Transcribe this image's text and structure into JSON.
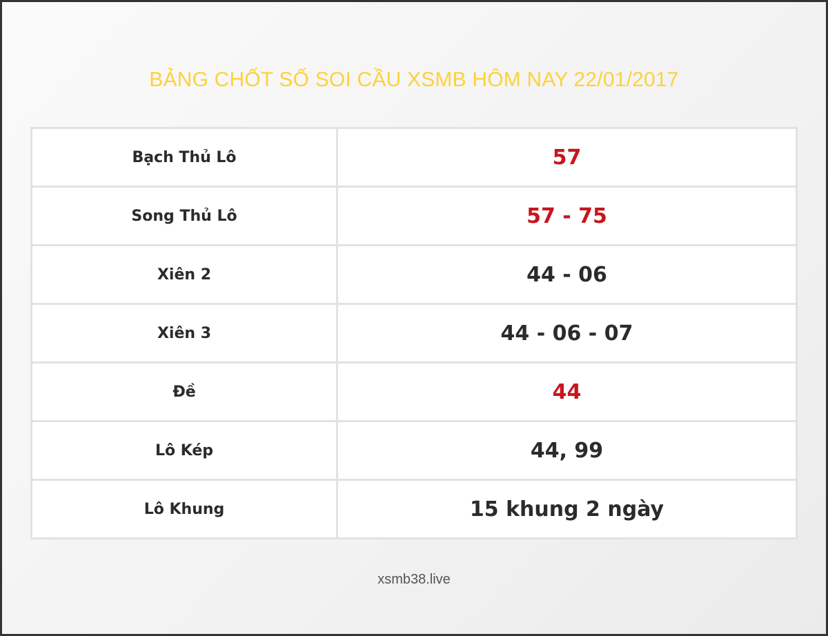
{
  "title": "BẢNG CHỐT SỐ SOI CẦU XSMB HÔM NAY 22/01/2017",
  "rows": [
    {
      "label": "Bạch Thủ Lô",
      "value": "57",
      "highlight": true
    },
    {
      "label": "Song Thủ Lô",
      "value": "57 - 75",
      "highlight": true
    },
    {
      "label": "Xiên 2",
      "value": "44 - 06",
      "highlight": false
    },
    {
      "label": "Xiên 3",
      "value": "44 - 06 - 07",
      "highlight": false
    },
    {
      "label": "Đề",
      "value": "44",
      "highlight": true
    },
    {
      "label": "Lô Kép",
      "value": "44, 99",
      "highlight": false
    },
    {
      "label": "Lô Khung",
      "value": "15 khung 2 ngày",
      "highlight": false
    }
  ],
  "footer": "xsmb38.live",
  "colors": {
    "title": "#fdd23a",
    "highlight": "#c8161d",
    "text": "#2b2b2b"
  }
}
